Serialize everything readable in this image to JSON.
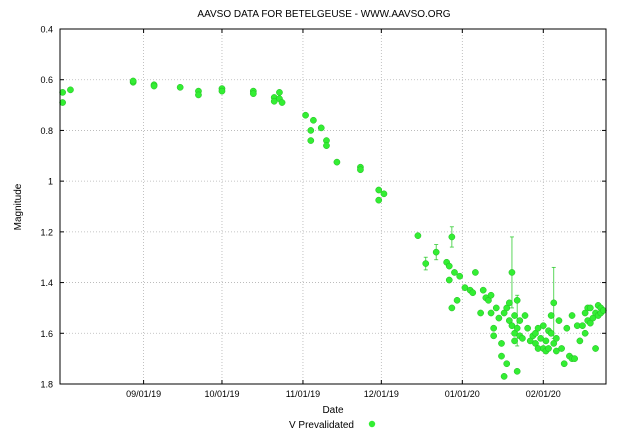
{
  "chart_data": {
    "type": "scatter",
    "title": "AAVSO DATA FOR BETELGEUSE - WWW.AAVSO.ORG",
    "xlabel": "Date",
    "ylabel": "Magnitude",
    "ylim": [
      0.4,
      1.8
    ],
    "y_inverted": true,
    "y_ticks": [
      "0.4",
      "0.6",
      "0.8",
      "1",
      "1.2",
      "1.4",
      "1.6",
      "1.8"
    ],
    "x_range": [
      "2019-07-31",
      "2020-02-25"
    ],
    "x_ticks": [
      {
        "date": "2019-09-01",
        "label": "09/01/19"
      },
      {
        "date": "2019-10-01",
        "label": "10/01/19"
      },
      {
        "date": "2019-11-01",
        "label": "11/01/19"
      },
      {
        "date": "2019-12-01",
        "label": "12/01/19"
      },
      {
        "date": "2020-01-01",
        "label": "01/01/20"
      },
      {
        "date": "2020-02-01",
        "label": "02/01/20"
      }
    ],
    "grid": true,
    "grid_style": "dotted",
    "legend": "bottom-center",
    "series": [
      {
        "name": "V Prevalidated",
        "color": "#33ee33",
        "points": [
          {
            "x": "2019-08-01",
            "y": 0.65
          },
          {
            "x": "2019-08-01",
            "y": 0.69
          },
          {
            "x": "2019-08-04",
            "y": 0.64
          },
          {
            "x": "2019-08-28",
            "y": 0.61
          },
          {
            "x": "2019-08-28",
            "y": 0.605
          },
          {
            "x": "2019-09-05",
            "y": 0.62
          },
          {
            "x": "2019-09-05",
            "y": 0.625
          },
          {
            "x": "2019-09-15",
            "y": 0.63
          },
          {
            "x": "2019-09-22",
            "y": 0.645
          },
          {
            "x": "2019-09-22",
            "y": 0.66
          },
          {
            "x": "2019-10-01",
            "y": 0.635
          },
          {
            "x": "2019-10-01",
            "y": 0.645
          },
          {
            "x": "2019-10-13",
            "y": 0.645
          },
          {
            "x": "2019-10-13",
            "y": 0.655
          },
          {
            "x": "2019-10-21",
            "y": 0.67
          },
          {
            "x": "2019-10-21",
            "y": 0.685
          },
          {
            "x": "2019-10-23",
            "y": 0.65
          },
          {
            "x": "2019-10-23",
            "y": 0.675
          },
          {
            "x": "2019-10-24",
            "y": 0.69
          },
          {
            "x": "2019-11-02",
            "y": 0.74
          },
          {
            "x": "2019-11-04",
            "y": 0.8
          },
          {
            "x": "2019-11-04",
            "y": 0.84
          },
          {
            "x": "2019-11-05",
            "y": 0.76
          },
          {
            "x": "2019-11-08",
            "y": 0.79
          },
          {
            "x": "2019-11-10",
            "y": 0.84
          },
          {
            "x": "2019-11-10",
            "y": 0.86
          },
          {
            "x": "2019-11-14",
            "y": 0.925
          },
          {
            "x": "2019-11-23",
            "y": 0.945
          },
          {
            "x": "2019-11-23",
            "y": 0.955
          },
          {
            "x": "2019-11-30",
            "y": 1.035
          },
          {
            "x": "2019-11-30",
            "y": 1.075
          },
          {
            "x": "2019-12-02",
            "y": 1.05
          },
          {
            "x": "2019-12-15",
            "y": 1.215
          },
          {
            "x": "2019-12-18",
            "y": 1.325
          },
          {
            "x": "2019-12-22",
            "y": 1.28
          },
          {
            "x": "2019-12-26",
            "y": 1.32
          },
          {
            "x": "2019-12-27",
            "y": 1.335
          },
          {
            "x": "2019-12-27",
            "y": 1.39
          },
          {
            "x": "2019-12-28",
            "y": 1.22
          },
          {
            "x": "2019-12-28",
            "y": 1.5
          },
          {
            "x": "2019-12-29",
            "y": 1.36
          },
          {
            "x": "2019-12-30",
            "y": 1.47
          },
          {
            "x": "2019-12-31",
            "y": 1.375
          },
          {
            "x": "2020-01-02",
            "y": 1.42
          },
          {
            "x": "2020-01-04",
            "y": 1.43
          },
          {
            "x": "2020-01-05",
            "y": 1.44
          },
          {
            "x": "2020-01-06",
            "y": 1.36
          },
          {
            "x": "2020-01-08",
            "y": 1.52
          },
          {
            "x": "2020-01-09",
            "y": 1.43
          },
          {
            "x": "2020-01-10",
            "y": 1.46
          },
          {
            "x": "2020-01-11",
            "y": 1.47
          },
          {
            "x": "2020-01-12",
            "y": 1.45
          },
          {
            "x": "2020-01-12",
            "y": 1.52
          },
          {
            "x": "2020-01-13",
            "y": 1.58
          },
          {
            "x": "2020-01-13",
            "y": 1.61
          },
          {
            "x": "2020-01-14",
            "y": 1.5
          },
          {
            "x": "2020-01-15",
            "y": 1.54
          },
          {
            "x": "2020-01-16",
            "y": 1.64
          },
          {
            "x": "2020-01-16",
            "y": 1.69
          },
          {
            "x": "2020-01-17",
            "y": 1.52
          },
          {
            "x": "2020-01-17",
            "y": 1.77
          },
          {
            "x": "2020-01-18",
            "y": 1.5
          },
          {
            "x": "2020-01-18",
            "y": 1.72
          },
          {
            "x": "2020-01-19",
            "y": 1.48
          },
          {
            "x": "2020-01-19",
            "y": 1.55
          },
          {
            "x": "2020-01-20",
            "y": 1.36
          },
          {
            "x": "2020-01-20",
            "y": 1.57
          },
          {
            "x": "2020-01-21",
            "y": 1.53
          },
          {
            "x": "2020-01-21",
            "y": 1.6
          },
          {
            "x": "2020-01-21",
            "y": 1.63
          },
          {
            "x": "2020-01-22",
            "y": 1.47
          },
          {
            "x": "2020-01-22",
            "y": 1.58
          },
          {
            "x": "2020-01-22",
            "y": 1.75
          },
          {
            "x": "2020-01-23",
            "y": 1.55
          },
          {
            "x": "2020-01-23",
            "y": 1.61
          },
          {
            "x": "2020-01-24",
            "y": 1.62
          },
          {
            "x": "2020-01-25",
            "y": 1.53
          },
          {
            "x": "2020-01-26",
            "y": 1.58
          },
          {
            "x": "2020-01-27",
            "y": 1.63
          },
          {
            "x": "2020-01-28",
            "y": 1.61
          },
          {
            "x": "2020-01-29",
            "y": 1.6
          },
          {
            "x": "2020-01-29",
            "y": 1.64
          },
          {
            "x": "2020-01-30",
            "y": 1.58
          },
          {
            "x": "2020-01-30",
            "y": 1.66
          },
          {
            "x": "2020-01-31",
            "y": 1.62
          },
          {
            "x": "2020-02-01",
            "y": 1.57
          },
          {
            "x": "2020-02-01",
            "y": 1.66
          },
          {
            "x": "2020-02-02",
            "y": 1.63
          },
          {
            "x": "2020-02-02",
            "y": 1.67
          },
          {
            "x": "2020-02-03",
            "y": 1.59
          },
          {
            "x": "2020-02-03",
            "y": 1.66
          },
          {
            "x": "2020-02-04",
            "y": 1.53
          },
          {
            "x": "2020-02-04",
            "y": 1.6
          },
          {
            "x": "2020-02-05",
            "y": 1.48
          },
          {
            "x": "2020-02-05",
            "y": 1.64
          },
          {
            "x": "2020-02-06",
            "y": 1.62
          },
          {
            "x": "2020-02-06",
            "y": 1.67
          },
          {
            "x": "2020-02-07",
            "y": 1.55
          },
          {
            "x": "2020-02-08",
            "y": 1.66
          },
          {
            "x": "2020-02-09",
            "y": 1.72
          },
          {
            "x": "2020-02-10",
            "y": 1.58
          },
          {
            "x": "2020-02-11",
            "y": 1.69
          },
          {
            "x": "2020-02-12",
            "y": 1.53
          },
          {
            "x": "2020-02-12",
            "y": 1.7
          },
          {
            "x": "2020-02-13",
            "y": 1.7
          },
          {
            "x": "2020-02-14",
            "y": 1.57
          },
          {
            "x": "2020-02-15",
            "y": 1.63
          },
          {
            "x": "2020-02-16",
            "y": 1.57
          },
          {
            "x": "2020-02-17",
            "y": 1.52
          },
          {
            "x": "2020-02-17",
            "y": 1.6
          },
          {
            "x": "2020-02-18",
            "y": 1.5
          },
          {
            "x": "2020-02-18",
            "y": 1.55
          },
          {
            "x": "2020-02-19",
            "y": 1.5
          },
          {
            "x": "2020-02-19",
            "y": 1.56
          },
          {
            "x": "2020-02-20",
            "y": 1.54
          },
          {
            "x": "2020-02-21",
            "y": 1.52
          },
          {
            "x": "2020-02-21",
            "y": 1.66
          },
          {
            "x": "2020-02-22",
            "y": 1.49
          },
          {
            "x": "2020-02-22",
            "y": 1.53
          },
          {
            "x": "2020-02-23",
            "y": 1.5
          },
          {
            "x": "2020-02-23",
            "y": 1.52
          },
          {
            "x": "2020-02-24",
            "y": 1.51
          }
        ]
      }
    ]
  }
}
